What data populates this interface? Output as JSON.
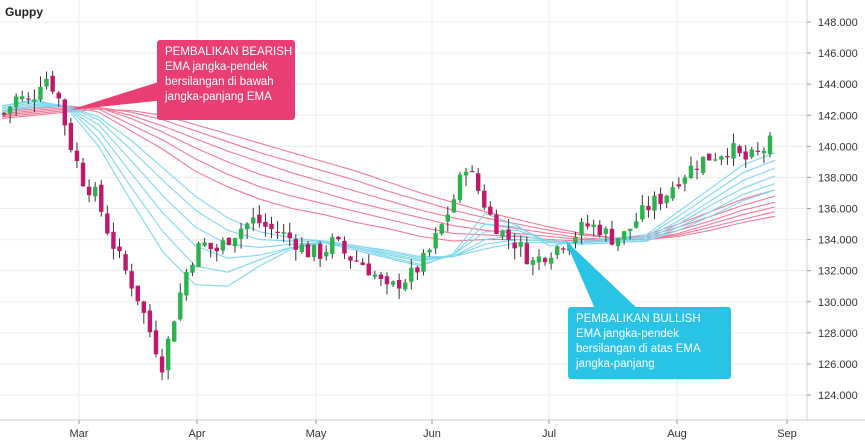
{
  "chart_data": {
    "type": "candlestick",
    "title": "Guppy",
    "y_range": [
      123,
      148
    ],
    "y_ticks": [
      "148.000",
      "146.000",
      "144.000",
      "142.000",
      "140.000",
      "138.000",
      "136.000",
      "134.000",
      "132.000",
      "130.000",
      "128.000",
      "126.000",
      "124.000"
    ],
    "x_ticks": [
      "Mar",
      "Apr",
      "May",
      "Jun",
      "Jul",
      "Aug",
      "Sep"
    ],
    "grid": true,
    "axis_position": "right",
    "colors": {
      "up": "#2bb34e",
      "down": "#c2186b",
      "short_ema": "#7fd7ef",
      "long_ema": "#f07a98",
      "bearish_callout": "#e83e74",
      "bullish_callout": "#29c3e6",
      "grid": "#eeeeee"
    },
    "price_path": [
      142.1,
      143.2,
      142.8,
      144.7,
      143.5,
      140.2,
      137.8,
      136.8,
      134.2,
      132.3,
      130.6,
      128.2,
      125.9,
      129.5,
      132.5,
      133.8,
      133.2,
      134.1,
      134.8,
      135.3,
      134.7,
      134.4,
      133.9,
      133.2,
      133.1,
      133.9,
      132.9,
      132.6,
      131.8,
      130.7,
      131.3,
      131.8,
      132.9,
      134.6,
      136.5,
      138.9,
      137.0,
      135.2,
      134.2,
      133.6,
      132.5,
      133.1,
      133.6,
      134.2,
      134.9,
      134.8,
      134.1,
      134.3,
      135.4,
      136.3,
      136.8,
      137.9,
      138.6,
      139.2,
      139.5,
      139.9,
      139.1,
      139.4,
      140.2
    ],
    "short_emas": [
      [
        142.6,
        143.0,
        142.5,
        140.0,
        136.5,
        133.2,
        131.1,
        131.0,
        132.3,
        133.4,
        133.8,
        133.3,
        132.8,
        132.3,
        133.1,
        135.7,
        134.9,
        133.6,
        133.9,
        134.1,
        134.3,
        135.8,
        137.3,
        138.8,
        139.6
      ],
      [
        142.6,
        142.9,
        142.6,
        140.5,
        137.4,
        134.5,
        132.3,
        131.9,
        132.7,
        133.5,
        133.9,
        133.4,
        132.9,
        132.4,
        133.0,
        135.0,
        134.8,
        133.8,
        133.8,
        134.0,
        134.2,
        135.5,
        136.9,
        138.3,
        139.1
      ],
      [
        142.5,
        142.8,
        142.6,
        141.0,
        138.3,
        135.7,
        133.6,
        132.8,
        133.0,
        133.5,
        133.8,
        133.5,
        133.0,
        132.6,
        133.0,
        134.5,
        134.6,
        133.9,
        133.8,
        134.0,
        134.1,
        135.2,
        136.5,
        137.8,
        138.6
      ],
      [
        142.4,
        142.7,
        142.6,
        141.4,
        139.1,
        136.8,
        134.8,
        133.7,
        133.5,
        133.7,
        133.8,
        133.5,
        133.1,
        132.7,
        132.9,
        134.0,
        134.3,
        133.9,
        133.8,
        133.9,
        134.0,
        135.0,
        136.2,
        137.3,
        138.1
      ],
      [
        142.3,
        142.6,
        142.6,
        141.7,
        139.8,
        137.8,
        135.9,
        134.6,
        134.0,
        133.9,
        133.9,
        133.6,
        133.2,
        132.8,
        132.9,
        133.7,
        134.0,
        133.9,
        133.7,
        133.8,
        133.9,
        134.8,
        135.8,
        136.9,
        137.6
      ],
      [
        142.2,
        142.5,
        142.6,
        141.9,
        140.4,
        138.6,
        136.8,
        135.4,
        134.5,
        134.1,
        133.9,
        133.6,
        133.3,
        132.9,
        132.9,
        133.4,
        133.8,
        133.8,
        133.7,
        133.8,
        133.9,
        134.6,
        135.5,
        136.5,
        137.2
      ]
    ],
    "long_emas": [
      [
        142.3,
        142.5,
        142.6,
        142.2,
        141.0,
        139.8,
        138.4,
        137.4,
        136.6,
        136.0,
        135.6,
        135.1,
        134.7,
        134.2,
        133.9,
        134.0,
        134.0,
        133.9,
        133.8,
        134.0,
        134.3,
        135.0,
        135.8,
        136.6,
        137.2
      ],
      [
        142.2,
        142.4,
        142.6,
        142.4,
        141.4,
        140.4,
        139.2,
        138.2,
        137.4,
        136.8,
        136.3,
        135.8,
        135.3,
        134.8,
        134.4,
        134.3,
        134.2,
        134.0,
        133.9,
        134.0,
        134.2,
        134.8,
        135.5,
        136.2,
        136.8
      ],
      [
        142.1,
        142.3,
        142.5,
        142.5,
        141.8,
        140.9,
        139.9,
        139.0,
        138.2,
        137.6,
        137.0,
        136.4,
        135.9,
        135.4,
        134.9,
        134.6,
        134.4,
        134.2,
        134.0,
        134.0,
        134.1,
        134.6,
        135.2,
        135.9,
        136.4
      ],
      [
        142.0,
        142.2,
        142.4,
        142.5,
        142.0,
        141.3,
        140.5,
        139.7,
        139.0,
        138.3,
        137.7,
        137.1,
        136.5,
        135.9,
        135.4,
        135.0,
        134.7,
        134.4,
        134.1,
        134.0,
        134.0,
        134.4,
        135.0,
        135.6,
        136.1
      ],
      [
        141.9,
        142.1,
        142.3,
        142.5,
        142.2,
        141.7,
        141.0,
        140.3,
        139.6,
        139.0,
        138.4,
        137.8,
        137.1,
        136.5,
        135.9,
        135.4,
        135.0,
        134.6,
        134.3,
        134.1,
        134.0,
        134.3,
        134.8,
        135.3,
        135.8
      ],
      [
        141.8,
        142.0,
        142.2,
        142.4,
        142.3,
        142.0,
        141.4,
        140.8,
        140.2,
        139.6,
        139.0,
        138.4,
        137.7,
        137.0,
        136.4,
        135.8,
        135.3,
        134.8,
        134.4,
        134.1,
        134.0,
        134.2,
        134.6,
        135.1,
        135.5
      ]
    ],
    "annotations": [
      {
        "lines": [
          "PEMBALIKAN BEARISH",
          "EMA jangka-pendek",
          "bersilangan di bawah",
          "jangka-panjang EMA"
        ],
        "color": "#e83e74"
      },
      {
        "lines": [
          "PEMBALIKAN BULLISH",
          "EMA jangka-pendek",
          "bersilangan di atas EMA",
          "jangka-panjang"
        ],
        "color": "#29c3e6"
      }
    ]
  }
}
